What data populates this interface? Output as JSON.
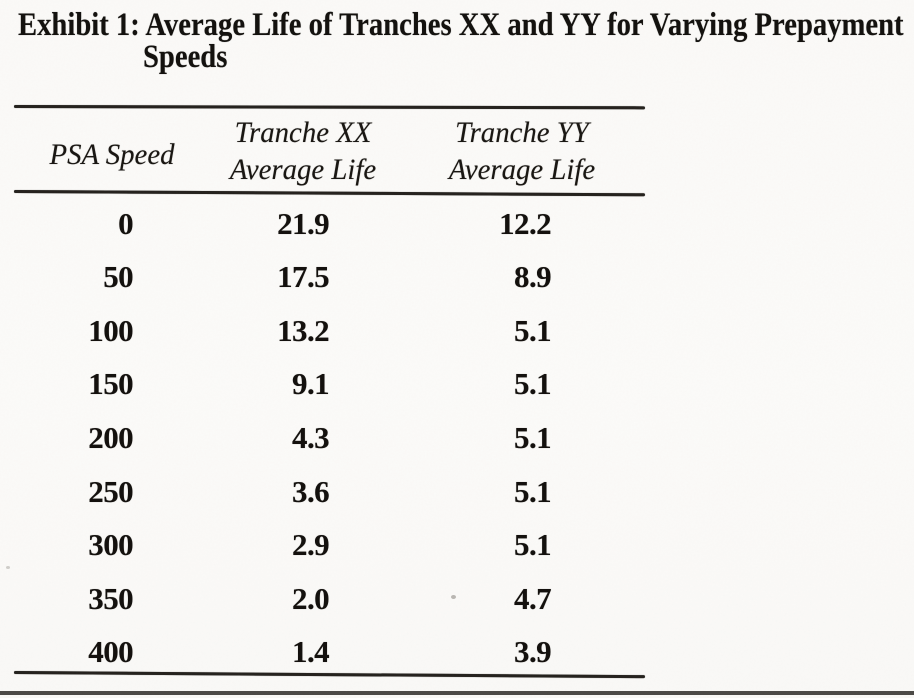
{
  "page": {
    "background_color": "#faf9f7",
    "ink_color": "#14120f",
    "scan_bar_color": "#4c4a47"
  },
  "exhibit": {
    "label": "Exhibit 1:",
    "title_line1": "Average Life of Tranches XX and YY for Varying Prepayment",
    "title_line2": "Speeds"
  },
  "table": {
    "col1_header": "PSA Speed",
    "col2_header_line1": "Tranche XX",
    "col2_header_line2": "Average Life",
    "col3_header_line1": "Tranche YY",
    "col3_header_line2": "Average Life",
    "rows": [
      [
        "0",
        "21.9",
        "12.2"
      ],
      [
        "50",
        "17.5",
        "8.9"
      ],
      [
        "100",
        "13.2",
        "5.1"
      ],
      [
        "150",
        "9.1",
        "5.1"
      ],
      [
        "200",
        "4.3",
        "5.1"
      ],
      [
        "250",
        "3.6",
        "5.1"
      ],
      [
        "300",
        "2.9",
        "5.1"
      ],
      [
        "350",
        "2.0",
        "4.7"
      ],
      [
        "400",
        "1.4",
        "3.9"
      ]
    ]
  },
  "chart_data": {
    "type": "table",
    "title": "Exhibit 1: Average Life of Tranches XX and YY for Varying Prepayment Speeds",
    "columns": [
      "PSA Speed",
      "Tranche XX Average Life",
      "Tranche YY Average Life"
    ],
    "rows": [
      [
        0,
        21.9,
        12.2
      ],
      [
        50,
        17.5,
        8.9
      ],
      [
        100,
        13.2,
        5.1
      ],
      [
        150,
        9.1,
        5.1
      ],
      [
        200,
        4.3,
        5.1
      ],
      [
        250,
        3.6,
        5.1
      ],
      [
        300,
        2.9,
        5.1
      ],
      [
        350,
        2.0,
        4.7
      ],
      [
        400,
        1.4,
        3.9
      ]
    ]
  }
}
